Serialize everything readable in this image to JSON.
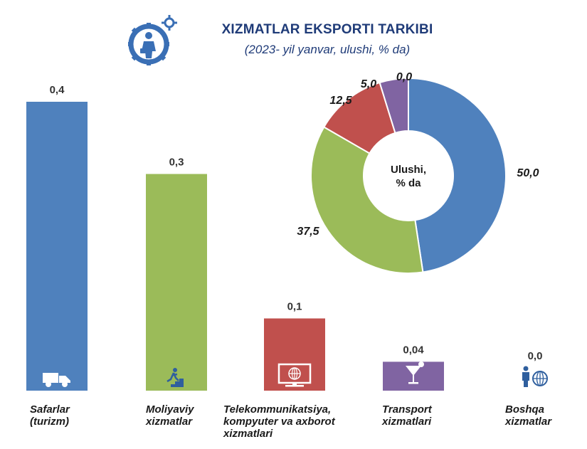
{
  "header": {
    "title": "XIZMATLAR EKSPORTI TARKIBI",
    "subtitle": "(2023- yil yanvar, ulushi, % da)",
    "icon": "business-gear-icon"
  },
  "chart_data": [
    {
      "type": "bar",
      "categories": [
        "Safarlar (turizm)",
        "Moliyaviy xizmatlar",
        "Telekommunikatsiya, kompyuter va axborot xizmatlari",
        "Transport xizmatlari",
        "Boshqa xizmatlar"
      ],
      "category_lines": [
        [
          "Safarlar",
          "(turizm)"
        ],
        [
          "Moliyaviy",
          "xizmatlar"
        ],
        [
          "Telekommunikatsiya,",
          "kompyuter va axborot",
          "xizmatlari"
        ],
        [
          "Transport",
          "xizmatlari"
        ],
        [
          "Boshqa",
          "xizmatlar"
        ]
      ],
      "values": [
        0.4,
        0.3,
        0.1,
        0.04,
        0.0
      ],
      "value_labels": [
        "0,4",
        "0,3",
        "0,1",
        "0,04",
        "0,0"
      ],
      "colors": [
        "#4f81bd",
        "#9bbb59",
        "#c0504d",
        "#8064a2",
        "#4f81bd"
      ],
      "icons": [
        "truck-icon",
        "running-man-stairs-icon",
        "monitor-globe-icon",
        "cocktail-glass-icon",
        "person-globe-icon"
      ],
      "ylim": [
        0,
        0.4
      ]
    },
    {
      "type": "pie",
      "style": "donut",
      "center_label": [
        "Ulushi,",
        "% da"
      ],
      "slices": [
        {
          "label": "50,0",
          "value": 50.0,
          "color": "#4f81bd"
        },
        {
          "label": "37,5",
          "value": 37.5,
          "color": "#9bbb59"
        },
        {
          "label": "12,5",
          "value": 12.5,
          "color": "#c0504d"
        },
        {
          "label": "5,0",
          "value": 5.0,
          "color": "#8064a2"
        },
        {
          "label": "0,0",
          "value": 0.0,
          "color": "#4f81bd"
        }
      ]
    }
  ]
}
